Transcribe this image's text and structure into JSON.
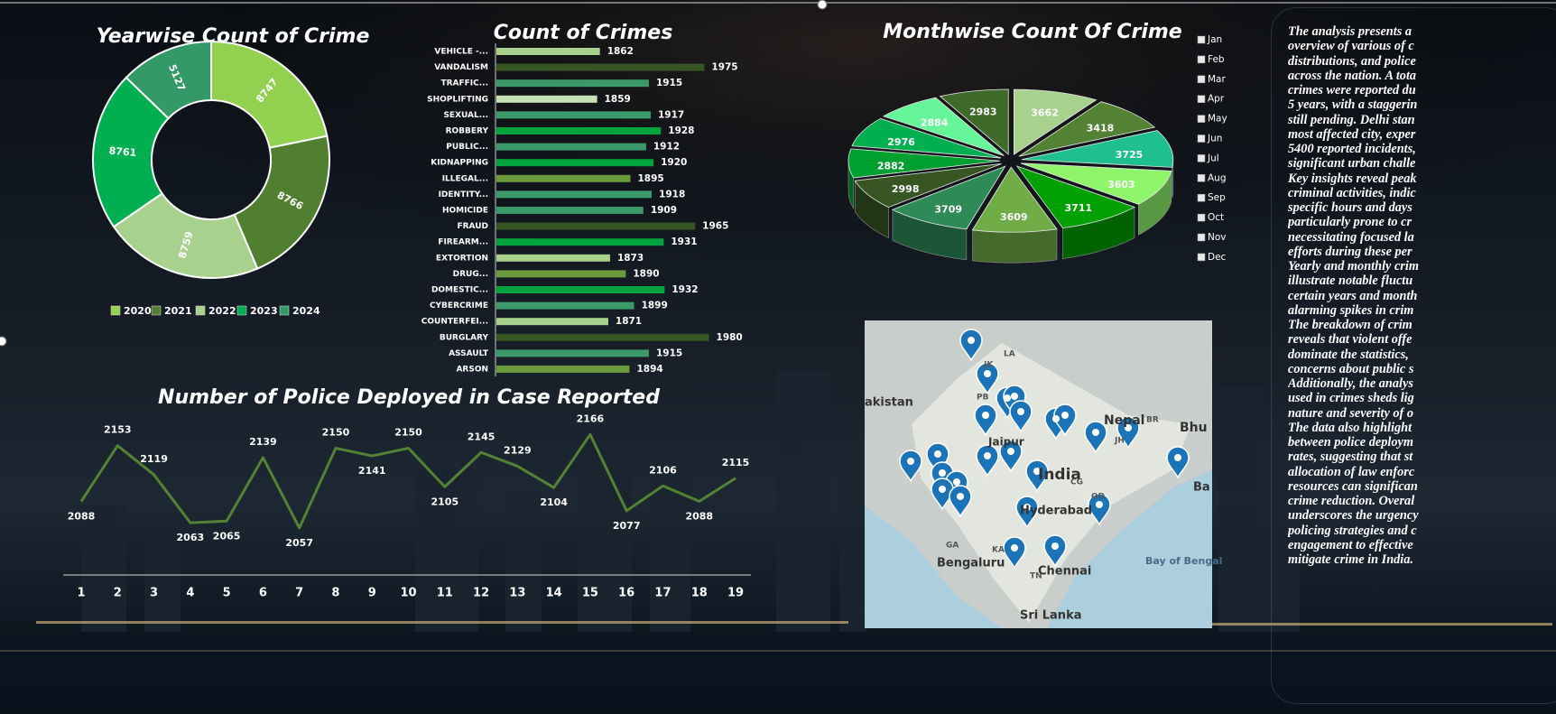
{
  "chart_data": [
    {
      "type": "doughnut",
      "title": "Yearwise Count of Crime",
      "categories": [
        "2020",
        "2021",
        "2022",
        "2023",
        "2024"
      ],
      "values": [
        8747,
        8766,
        8759,
        8761,
        5127
      ],
      "colors": [
        "#92d050",
        "#4f7f2f",
        "#a9d18e",
        "#00b050",
        "#339966"
      ],
      "legend": "bottom"
    },
    {
      "type": "barh",
      "title": "Count of Crimes",
      "categories": [
        "VEHICLE -...",
        "VANDALISM",
        "TRAFFIC...",
        "SHOPLIFTING",
        "SEXUAL...",
        "ROBBERY",
        "PUBLIC...",
        "KIDNAPPING",
        "ILLEGAL...",
        "IDENTITY...",
        "HOMICIDE",
        "FRAUD",
        "FIREARM...",
        "EXTORTION",
        "DRUG...",
        "DOMESTIC...",
        "CYBERCRIME",
        "COUNTERFEI...",
        "BURGLARY",
        "ASSAULT",
        "ARSON"
      ],
      "values": [
        1862,
        1975,
        1915,
        1859,
        1917,
        1928,
        1912,
        1920,
        1895,
        1918,
        1909,
        1965,
        1931,
        1873,
        1890,
        1932,
        1899,
        1871,
        1980,
        1915,
        1894
      ],
      "colors": [
        "#a9d18e",
        "#375623",
        "#3c9a6a",
        "#c5e0b4",
        "#3c9a6a",
        "#00a33c",
        "#3c9a6a",
        "#00a33c",
        "#6a9a3c",
        "#3c9a6a",
        "#3c9a6a",
        "#375623",
        "#00a33c",
        "#a9d18e",
        "#6a9a3c",
        "#00a33c",
        "#3c9a6a",
        "#a9d18e",
        "#375623",
        "#3c9a6a",
        "#6a9a3c"
      ],
      "xlim": [
        1750,
        2000
      ]
    },
    {
      "type": "line",
      "title": "Number of Police Deployed in Case Reported",
      "categories": [
        "1",
        "2",
        "3",
        "4",
        "5",
        "6",
        "7",
        "8",
        "9",
        "10",
        "11",
        "12",
        "13",
        "14",
        "15",
        "16",
        "17",
        "18",
        "19"
      ],
      "values": [
        2088,
        2153,
        2119,
        2063,
        2065,
        2139,
        2057,
        2150,
        2141,
        2150,
        2105,
        2145,
        2129,
        2104,
        2166,
        2077,
        2106,
        2088,
        2115
      ],
      "color": "#548235",
      "ylim": [
        2000,
        2200
      ]
    },
    {
      "type": "pie3d",
      "title": "Monthwise Count Of Crime",
      "categories": [
        "Jan",
        "Feb",
        "Mar",
        "Apr",
        "May",
        "Jun",
        "Jul",
        "Aug",
        "Sep",
        "Oct",
        "Nov",
        "Dec"
      ],
      "values": [
        3662,
        3418,
        3725,
        3603,
        3711,
        3609,
        3709,
        2998,
        2882,
        2976,
        2884,
        2983
      ],
      "colors": [
        "#a9d18e",
        "#548235",
        "#1fc08e",
        "#8ef56a",
        "#00a000",
        "#70ad47",
        "#2e8b57",
        "#375623",
        "#00a030",
        "#00b050",
        "#66f599",
        "#3f6a2a"
      ],
      "legend": "right"
    }
  ],
  "text_panel": {
    "lines": [
      "The analysis presents a",
      "overview of various of c",
      "distributions, and police",
      "across the nation. A tota",
      "crimes were reported du",
      "5 years, with a staggerin",
      "still pending. Delhi stan",
      "most affected city, exper",
      "5400 reported incidents,",
      "significant urban challe",
      "Key insights reveal peak",
      "criminal activities, indic",
      "specific hours and days",
      "particularly prone to cr",
      "necessitating focused la",
      "efforts during these per",
      "Yearly and monthly crim",
      "illustrate notable fluctu",
      "certain years and month",
      "alarming spikes in crim",
      "The breakdown of crim",
      "reveals that violent offe",
      "dominate the statistics,",
      "concerns about public s",
      "Additionally, the analys",
      "used in crimes sheds lig",
      "nature and severity of o",
      "The data also highlight",
      "between police deploym",
      "rates, suggesting that st",
      "allocation of law enforc",
      "resources can significan",
      "crime reduction. Overal",
      "underscores the urgency",
      "policing strategies and c",
      "engagement to effective",
      "mitigate crime in India."
    ]
  },
  "map": {
    "labels": [
      "akistan",
      "JK",
      "LA",
      "PB",
      "Nepal",
      "Bhu",
      "Jaipur",
      "India",
      "BR",
      "JH",
      "CG",
      "OD",
      "Hyderabad",
      "GA",
      "KA",
      "TN",
      "Bengaluru",
      "Chennai",
      "Bay of Bengal",
      "Sri Lanka",
      "Ba"
    ]
  }
}
